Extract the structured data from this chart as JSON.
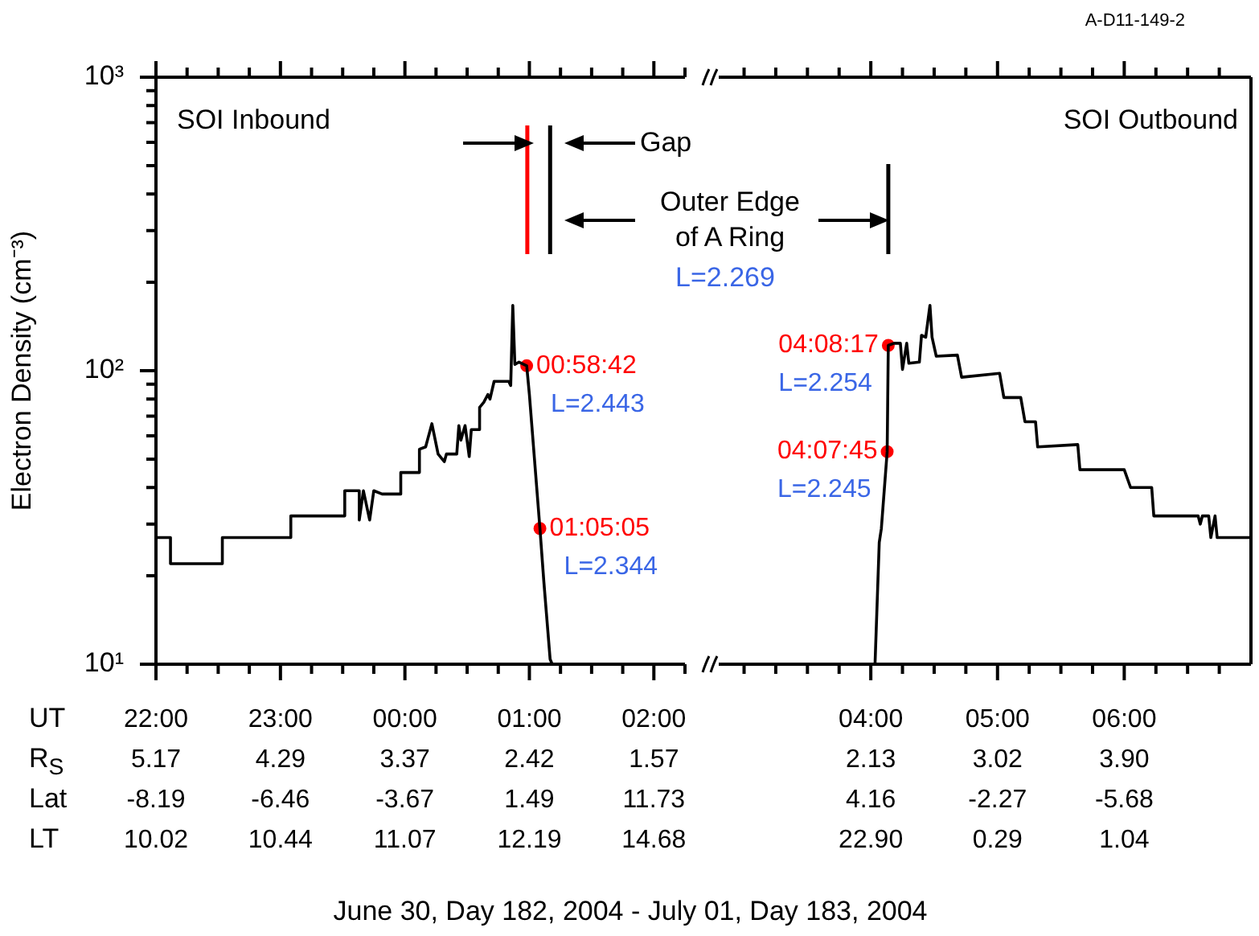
{
  "chart_data": [
    {
      "type": "line",
      "ylabel": "Electron Density (cm⁻³)",
      "xlabel": "June 30, Day 182, 2004 - July 01, Day 183, 2004",
      "xlim": [
        "2004-06-30T22:00",
        "2004-07-01T02:15"
      ],
      "ylim": [
        10,
        1000
      ],
      "log": true,
      "grid": false,
      "legend": false,
      "xticks": [
        {
          "value": "2004-06-30T22:00",
          "label": "22:00\n5.17\n-8.19\n10.02"
        },
        {
          "value": "2004-06-30T22:15",
          "label": null
        },
        {
          "value": "2004-06-30T22:30",
          "label": null
        },
        {
          "value": "2004-06-30T22:45",
          "label": null
        },
        {
          "value": "2004-06-30T23:00",
          "label": "23:00\n4.29\n-6.46\n10.44"
        },
        {
          "value": "2004-06-30T23:15",
          "label": null
        },
        {
          "value": "2004-06-30T23:30",
          "label": null
        },
        {
          "value": "2004-06-30T23:45",
          "label": null
        },
        {
          "value": "2004-07-01T00:00",
          "label": "00:00\n3.37\n-3.67\n11.07"
        },
        {
          "value": "2004-07-01T00:15",
          "label": null
        },
        {
          "value": "2004-07-01T00:30",
          "label": null
        },
        {
          "value": "2004-07-01T00:45",
          "label": null
        },
        {
          "value": "2004-07-01T01:00",
          "label": "01:00\n2.42\n1.49\n12.19"
        },
        {
          "value": "2004-07-01T01:15",
          "label": null
        },
        {
          "value": "2004-07-01T01:30",
          "label": null
        },
        {
          "value": "2004-07-01T01:45",
          "label": null
        },
        {
          "value": "2004-07-01T02:00",
          "label": "02:00\n1.57\n11.73\n14.68"
        },
        {
          "value": "2004-07-01T02:15",
          "label": null
        }
      ],
      "yticks": [
        {
          "value": 10,
          "label": "10¹"
        },
        {
          "value": 20,
          "label": null
        },
        {
          "value": 30,
          "label": null
        },
        {
          "value": 40,
          "label": null
        },
        {
          "value": 50,
          "label": null
        },
        {
          "value": 60,
          "label": null
        },
        {
          "value": 70,
          "label": null
        },
        {
          "value": 80,
          "label": null
        },
        {
          "value": 90,
          "label": null
        },
        {
          "value": 100,
          "label": "10²"
        },
        {
          "value": 200,
          "label": null
        },
        {
          "value": 300,
          "label": null
        },
        {
          "value": 400,
          "label": null
        },
        {
          "value": 500,
          "label": null
        },
        {
          "value": 600,
          "label": null
        },
        {
          "value": 700,
          "label": null
        },
        {
          "value": 800,
          "label": null
        },
        {
          "value": 900,
          "label": null
        },
        {
          "value": 1000,
          "label": "10³"
        }
      ],
      "series": [
        {
          "type": "line",
          "color": "#000000",
          "x": [
            "2004-06-30T22:00",
            "2004-06-30T22:07",
            "2004-06-30T22:07",
            "2004-06-30T22:32",
            "2004-06-30T22:32",
            "2004-06-30T23:05",
            "2004-06-30T23:05",
            "2004-06-30T23:31",
            "2004-06-30T23:31",
            "2004-06-30T23:38",
            "2004-06-30T23:38",
            "2004-06-30T23:40",
            "2004-06-30T23:43",
            "2004-06-30T23:45",
            "2004-06-30T23:49",
            "2004-06-30T23:58",
            "2004-06-30T23:58",
            "2004-07-01T00:07",
            "2004-07-01T00:07",
            "2004-07-01T00:10",
            "2004-07-01T00:13",
            "2004-07-01T00:16",
            "2004-07-01T00:19",
            "2004-07-01T00:20",
            "2004-07-01T00:25",
            "2004-07-01T00:26",
            "2004-07-01T00:27",
            "2004-07-01T00:29",
            "2004-07-01T00:31",
            "2004-07-01T00:32",
            "2004-07-01T00:36",
            "2004-07-01T00:36",
            "2004-07-01T00:38",
            "2004-07-01T00:40",
            "2004-07-01T00:41",
            "2004-07-01T00:43",
            "2004-07-01T00:50",
            "2004-07-01T00:51",
            "2004-07-01T00:52",
            "2004-07-01T00:53",
            "2004-07-01T00:55",
            "2004-07-01T00:58:42",
            "2004-07-01T01:00",
            "2004-07-01T01:05:05",
            "2004-07-01T01:07",
            "2004-07-01T01:10",
            "2004-07-01T01:11"
          ],
          "values": [
            27,
            27,
            22,
            22,
            27,
            27,
            32,
            32,
            39,
            39,
            31,
            39,
            31,
            39,
            38,
            38,
            45,
            45,
            54,
            55,
            66,
            52,
            49,
            52,
            52,
            65,
            58,
            65,
            51,
            63,
            63,
            75,
            78,
            83,
            80,
            92,
            92,
            89,
            167,
            105,
            107,
            104,
            83,
            29,
            19,
            10.4,
            10
          ]
        },
        {
          "type": "scatter",
          "color": "#ff0000",
          "marker": "circle",
          "x": [
            "2004-07-01T00:58:42",
            "2004-07-01T01:05:05"
          ],
          "values": [
            104,
            29
          ]
        }
      ],
      "ref_lines": [
        {
          "axis": "x",
          "value": "2004-07-01T00:59",
          "color": "#ff0000"
        },
        {
          "axis": "x",
          "value": "2004-07-01T01:10",
          "color": "#000000"
        }
      ],
      "annotations": [
        "SOI Inbound",
        {
          "text": "00:58:42",
          "x": "2004-07-01T00:58:42",
          "y": 104
        },
        {
          "text": "L=2.443",
          "x": "2004-07-01T00:58:42",
          "y": 104
        },
        {
          "text": "01:05:05",
          "x": "2004-07-01T01:05:05",
          "y": 29
        },
        {
          "text": "L=2.344",
          "x": "2004-07-01T01:05:05",
          "y": 29
        },
        "Gap",
        "Outer Edge of A Ring",
        "L=2.269",
        "UT",
        "R$_{S}$",
        "Lat",
        "LT",
        "A-D11-149-2"
      ]
    },
    {
      "type": "line",
      "xlim": [
        "2004-07-01T02:48",
        "2004-07-01T07:00"
      ],
      "ylim": [
        10,
        1000
      ],
      "log": true,
      "grid": false,
      "legend": false,
      "tick_labels": "x",
      "xticks": [
        {
          "value": "2004-07-01T03:00",
          "label": null
        },
        {
          "value": "2004-07-01T03:15",
          "label": null
        },
        {
          "value": "2004-07-01T03:30",
          "label": null
        },
        {
          "value": "2004-07-01T03:45",
          "label": null
        },
        {
          "value": "2004-07-01T04:00",
          "label": "04:00\n2.13\n4.16\n22.90"
        },
        {
          "value": "2004-07-01T04:15",
          "label": null
        },
        {
          "value": "2004-07-01T04:30",
          "label": null
        },
        {
          "value": "2004-07-01T04:45",
          "label": null
        },
        {
          "value": "2004-07-01T05:00",
          "label": "05:00\n3.02\n-2.27\n0.29"
        },
        {
          "value": "2004-07-01T05:15",
          "label": null
        },
        {
          "value": "2004-07-01T05:30",
          "label": null
        },
        {
          "value": "2004-07-01T05:45",
          "label": null
        },
        {
          "value": "2004-07-01T06:00",
          "label": "06:00\n3.90\n-5.68\n1.04"
        },
        {
          "value": "2004-07-01T06:15",
          "label": null
        },
        {
          "value": "2004-07-01T06:30",
          "label": null
        },
        {
          "value": "2004-07-01T06:45",
          "label": null
        }
      ],
      "series": [
        {
          "type": "line",
          "color": "#000000",
          "x": [
            "2004-07-01T04:02",
            "2004-07-01T04:04",
            "2004-07-01T04:05",
            "2004-07-01T04:07:45",
            "2004-07-01T04:08:17",
            "2004-07-01T04:11",
            "2004-07-01T04:14",
            "2004-07-01T04:15",
            "2004-07-01T04:17",
            "2004-07-01T04:18",
            "2004-07-01T04:23",
            "2004-07-01T04:24",
            "2004-07-01T04:26",
            "2004-07-01T04:28",
            "2004-07-01T04:29",
            "2004-07-01T04:31",
            "2004-07-01T04:41",
            "2004-07-01T04:43",
            "2004-07-01T05:01",
            "2004-07-01T05:03",
            "2004-07-01T05:11",
            "2004-07-01T05:13",
            "2004-07-01T05:18",
            "2004-07-01T05:19",
            "2004-07-01T05:38",
            "2004-07-01T05:39",
            "2004-07-01T06:00",
            "2004-07-01T06:03",
            "2004-07-01T06:13",
            "2004-07-01T06:14",
            "2004-07-01T06:35",
            "2004-07-01T06:36",
            "2004-07-01T06:37",
            "2004-07-01T06:40",
            "2004-07-01T06:41",
            "2004-07-01T06:43",
            "2004-07-01T06:44",
            "2004-07-01T07:00"
          ],
          "values": [
            10,
            26,
            29,
            53,
            122,
            124,
            124,
            101,
            124,
            106,
            107,
            132,
            130,
            167,
            130,
            112,
            113,
            95,
            98,
            81,
            81,
            67,
            67,
            55,
            56,
            46,
            46,
            40,
            40,
            32,
            32,
            30,
            32,
            32,
            27,
            32,
            27,
            27
          ]
        },
        {
          "type": "scatter",
          "color": "#ff0000",
          "marker": "circle",
          "x": [
            "2004-07-01T04:07:45",
            "2004-07-01T04:08:17"
          ],
          "values": [
            53,
            122
          ]
        }
      ],
      "ref_lines": [
        {
          "axis": "x",
          "value": "2004-07-01T04:08:17",
          "color": "#000000"
        }
      ],
      "annotations": [
        "SOI Outbound",
        {
          "text": "04:08:17",
          "x": "2004-07-01T04:08:17",
          "y": 122
        },
        {
          "text": "L=2.254",
          "x": "2004-07-01T04:08:17",
          "y": 122
        },
        {
          "text": "04:07:45",
          "x": "2004-07-01T04:07:45",
          "y": 53
        },
        {
          "text": "L=2.245",
          "x": "2004-07-01T04:07:45",
          "y": 53
        }
      ]
    }
  ]
}
